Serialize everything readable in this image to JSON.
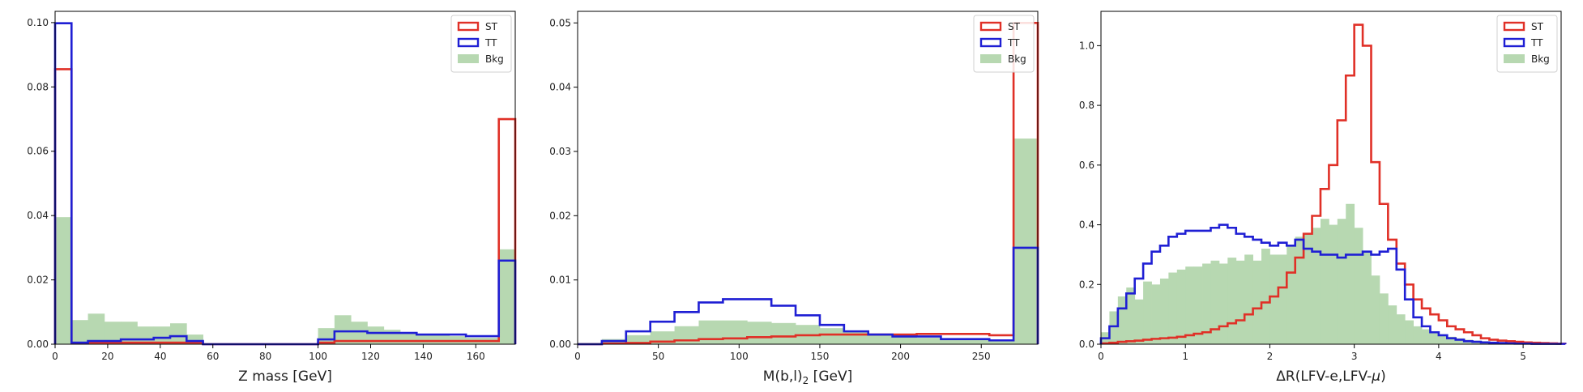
{
  "chart_data": [
    {
      "type": "histogram",
      "xlabel": "Z mass [GeV]",
      "xlim": [
        0,
        175
      ],
      "ylim": [
        0,
        0.1035
      ],
      "xticks": [
        0,
        20,
        40,
        60,
        80,
        100,
        120,
        140,
        160
      ],
      "yticks": [
        0.0,
        0.02,
        0.04,
        0.06,
        0.08,
        0.1
      ],
      "ytick_labels": [
        "0.00",
        "0.02",
        "0.04",
        "0.06",
        "0.08",
        "0.10"
      ],
      "legend": [
        "ST",
        "TT",
        "Bkg"
      ],
      "legend_loc": "top-right",
      "bin_edges": [
        0,
        6.25,
        12.5,
        18.75,
        25,
        31.25,
        37.5,
        43.75,
        50,
        56.25,
        62.5,
        68.75,
        75,
        81.25,
        87.5,
        93.75,
        100,
        106.25,
        112.5,
        118.75,
        125,
        131.25,
        137.5,
        143.75,
        150,
        156.25,
        162.5,
        168.75,
        175
      ],
      "series": [
        {
          "name": "Bkg",
          "kind": "filled",
          "color": "#b7d8b1",
          "values": [
            0.0395,
            0.0075,
            0.0095,
            0.007,
            0.007,
            0.0055,
            0.0055,
            0.0065,
            0.003,
            0,
            0,
            0,
            0,
            0,
            0,
            0,
            0.005,
            0.009,
            0.007,
            0.0055,
            0.0045,
            0.0035,
            0.003,
            0.003,
            0.0025,
            0.002,
            0.002,
            0.0295
          ]
        },
        {
          "name": "ST",
          "kind": "step",
          "color": "#e03027",
          "values": [
            0.0855,
            0.0003,
            0.0005,
            0.0005,
            0.0005,
            0.0005,
            0.0005,
            0.0005,
            0.0005,
            0,
            0,
            0,
            0,
            0,
            0,
            0,
            0.0005,
            0.001,
            0.001,
            0.001,
            0.001,
            0.001,
            0.001,
            0.001,
            0.001,
            0.001,
            0.001,
            0.07
          ]
        },
        {
          "name": "TT",
          "kind": "step",
          "color": "#1f1fd4",
          "values": [
            0.0998,
            0.0005,
            0.001,
            0.001,
            0.0015,
            0.0015,
            0.002,
            0.0025,
            0.001,
            0,
            0,
            0,
            0,
            0,
            0,
            0,
            0.0015,
            0.004,
            0.004,
            0.0035,
            0.0035,
            0.0035,
            0.003,
            0.003,
            0.003,
            0.0025,
            0.0025,
            0.026
          ]
        }
      ]
    },
    {
      "type": "histogram",
      "xlabel": "M(b,l)",
      "xlabel_sub": "2",
      "xlabel_suffix": " [GeV]",
      "xlim": [
        0,
        285
      ],
      "ylim": [
        0,
        0.0518
      ],
      "xticks": [
        0,
        50,
        100,
        150,
        200,
        250
      ],
      "yticks": [
        0.0,
        0.01,
        0.02,
        0.03,
        0.04,
        0.05
      ],
      "ytick_labels": [
        "0.00",
        "0.01",
        "0.02",
        "0.03",
        "0.04",
        "0.05"
      ],
      "legend": [
        "ST",
        "TT",
        "Bkg"
      ],
      "legend_loc": "top-right",
      "bin_edges": [
        0,
        15,
        30,
        45,
        60,
        75,
        90,
        105,
        120,
        135,
        150,
        165,
        180,
        195,
        210,
        225,
        240,
        255,
        270,
        285
      ],
      "series": [
        {
          "name": "Bkg",
          "kind": "filled",
          "color": "#b7d8b1",
          "values": [
            0.0002,
            0.0008,
            0.0014,
            0.002,
            0.0028,
            0.0037,
            0.0037,
            0.0035,
            0.0033,
            0.003,
            0.0025,
            0.002,
            0.0015,
            0.0012,
            0.001,
            0.0008,
            0.0007,
            0.0006,
            0.032
          ]
        },
        {
          "name": "ST",
          "kind": "step",
          "color": "#e03027",
          "values": [
            0,
            0.0001,
            0.0002,
            0.0004,
            0.0006,
            0.0008,
            0.0009,
            0.0011,
            0.0012,
            0.0014,
            0.0015,
            0.0015,
            0.0015,
            0.0015,
            0.0016,
            0.0016,
            0.0016,
            0.0014,
            0.05
          ]
        },
        {
          "name": "TT",
          "kind": "step",
          "color": "#1f1fd4",
          "values": [
            0,
            0.0005,
            0.002,
            0.0035,
            0.005,
            0.0065,
            0.007,
            0.007,
            0.006,
            0.0045,
            0.003,
            0.002,
            0.0015,
            0.0012,
            0.0012,
            0.0008,
            0.0008,
            0.0006,
            0.015
          ]
        }
      ]
    },
    {
      "type": "histogram",
      "xlabel": "ΔR(LFV-e,LFV-",
      "xlabel_greek": "μ",
      "xlabel_suffix": ")",
      "xlim": [
        0,
        5.45
      ],
      "ylim": [
        0,
        1.115
      ],
      "xticks": [
        0,
        1,
        2,
        3,
        4,
        5
      ],
      "yticks": [
        0.0,
        0.2,
        0.4,
        0.6,
        0.8,
        1.0
      ],
      "ytick_labels": [
        "0.0",
        "0.2",
        "0.4",
        "0.6",
        "0.8",
        "1.0"
      ],
      "legend": [
        "ST",
        "TT",
        "Bkg"
      ],
      "legend_loc": "top-right",
      "bin_start": 0,
      "bin_width": 0.1,
      "series": [
        {
          "name": "Bkg",
          "kind": "filled",
          "color": "#b7d8b1",
          "values": [
            0.04,
            0.11,
            0.16,
            0.19,
            0.15,
            0.21,
            0.2,
            0.22,
            0.24,
            0.25,
            0.26,
            0.26,
            0.27,
            0.28,
            0.27,
            0.29,
            0.28,
            0.3,
            0.28,
            0.32,
            0.3,
            0.3,
            0.33,
            0.36,
            0.37,
            0.39,
            0.42,
            0.4,
            0.42,
            0.47,
            0.39,
            0.31,
            0.23,
            0.17,
            0.13,
            0.1,
            0.08,
            0.06,
            0.05,
            0.04,
            0.03,
            0.025,
            0.02,
            0.015,
            0.012,
            0.01,
            0.008,
            0.006,
            0.005,
            0.004,
            0.003,
            0.002,
            0.001,
            0.001,
            0.001
          ]
        },
        {
          "name": "ST",
          "kind": "step",
          "color": "#e03027",
          "values": [
            0.003,
            0.005,
            0.008,
            0.01,
            0.012,
            0.015,
            0.018,
            0.02,
            0.022,
            0.025,
            0.03,
            0.035,
            0.04,
            0.05,
            0.06,
            0.07,
            0.08,
            0.1,
            0.12,
            0.14,
            0.16,
            0.19,
            0.24,
            0.29,
            0.37,
            0.43,
            0.52,
            0.6,
            0.75,
            0.9,
            1.07,
            1.0,
            0.61,
            0.47,
            0.35,
            0.27,
            0.2,
            0.15,
            0.12,
            0.1,
            0.08,
            0.06,
            0.05,
            0.04,
            0.03,
            0.02,
            0.015,
            0.012,
            0.01,
            0.008,
            0.006,
            0.005,
            0.004,
            0.003,
            0.002
          ]
        },
        {
          "name": "TT",
          "kind": "step",
          "color": "#1f1fd4",
          "values": [
            0.02,
            0.06,
            0.12,
            0.17,
            0.22,
            0.27,
            0.31,
            0.33,
            0.36,
            0.37,
            0.38,
            0.38,
            0.38,
            0.39,
            0.4,
            0.39,
            0.37,
            0.36,
            0.35,
            0.34,
            0.33,
            0.34,
            0.33,
            0.35,
            0.32,
            0.31,
            0.3,
            0.3,
            0.29,
            0.3,
            0.3,
            0.31,
            0.3,
            0.31,
            0.32,
            0.25,
            0.15,
            0.09,
            0.06,
            0.04,
            0.03,
            0.02,
            0.015,
            0.01,
            0.008,
            0.006,
            0.005,
            0.004,
            0.003,
            0.002,
            0.002,
            0.001,
            0.001,
            0.001,
            0.001
          ]
        }
      ]
    }
  ]
}
